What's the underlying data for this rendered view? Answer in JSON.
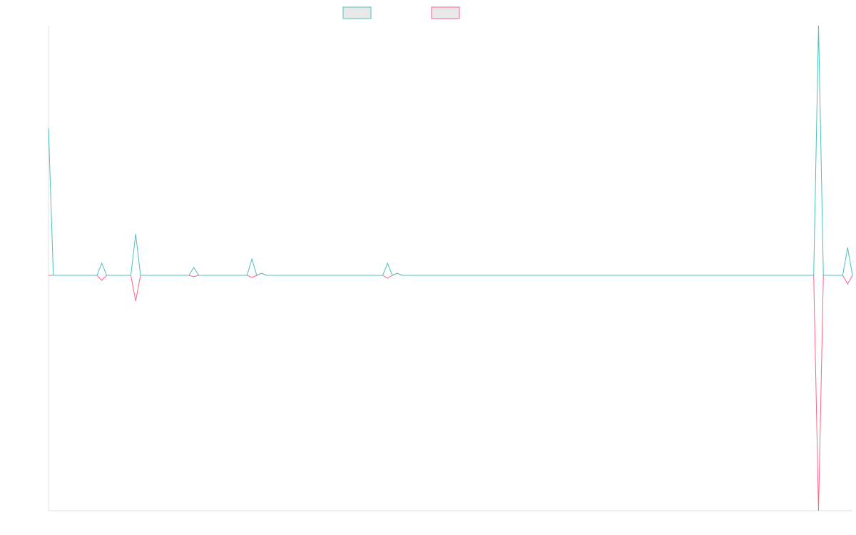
{
  "chart_data": {
    "type": "line",
    "categories": [
      null,
      null,
      null,
      null,
      null,
      null,
      null,
      null,
      null,
      null,
      null,
      null,
      null,
      null,
      null,
      null,
      null,
      null,
      null,
      null,
      null,
      null,
      null,
      null,
      null,
      null,
      null,
      null,
      null,
      null,
      null,
      null,
      null,
      null,
      null,
      null,
      null,
      null,
      null,
      null,
      null,
      null,
      null,
      null,
      null,
      null,
      null,
      null,
      null,
      null,
      null,
      null,
      null,
      null,
      null,
      null,
      null,
      null,
      null,
      null,
      null,
      null,
      null,
      null,
      null,
      null,
      null,
      null,
      null,
      null,
      null,
      null,
      null,
      null,
      null,
      null,
      null,
      null,
      null,
      null,
      null,
      null,
      null,
      null,
      null,
      null,
      null,
      null,
      null,
      null,
      null,
      null,
      null,
      null,
      null,
      null,
      null,
      null,
      null,
      null,
      null,
      null,
      null,
      null,
      null,
      null,
      null,
      null,
      null,
      null,
      null,
      null,
      null,
      null,
      null,
      null,
      null,
      null,
      null,
      null,
      null,
      null,
      null,
      null,
      null,
      null,
      null,
      null,
      null,
      null,
      null,
      null,
      null,
      null,
      null,
      null,
      null,
      null,
      null,
      null,
      null,
      null,
      null,
      null,
      null,
      null,
      null,
      null,
      null,
      null,
      null,
      null,
      null,
      null,
      null,
      null,
      null,
      null,
      null,
      null,
      null,
      null,
      null,
      null,
      null,
      null,
      null
    ],
    "series": [
      {
        "color": "#4bc0c0",
        "values": [
          206,
          0,
          0,
          0,
          0,
          0,
          0,
          0,
          0,
          0,
          0,
          17,
          0,
          0,
          0,
          0,
          0,
          0,
          58,
          0,
          0,
          0,
          0,
          0,
          0,
          0,
          0,
          0,
          0,
          0,
          11,
          0,
          0,
          0,
          0,
          0,
          0,
          0,
          0,
          0,
          0,
          0,
          23,
          0,
          3,
          0,
          0,
          0,
          0,
          0,
          0,
          0,
          0,
          0,
          0,
          0,
          0,
          0,
          0,
          0,
          0,
          0,
          0,
          0,
          0,
          0,
          0,
          0,
          0,
          0,
          17,
          0,
          3,
          0,
          0,
          0,
          0,
          0,
          0,
          0,
          0,
          0,
          0,
          0,
          0,
          0,
          0,
          0,
          0,
          0,
          0,
          0,
          0,
          0,
          0,
          0,
          0,
          0,
          0,
          0,
          0,
          0,
          0,
          0,
          0,
          0,
          0,
          0,
          0,
          0,
          0,
          0,
          0,
          0,
          0,
          0,
          0,
          0,
          0,
          0,
          0,
          0,
          0,
          0,
          0,
          0,
          0,
          0,
          0,
          0,
          0,
          0,
          0,
          0,
          0,
          0,
          0,
          0,
          0,
          0,
          0,
          0,
          0,
          0,
          0,
          0,
          0,
          0,
          0,
          0,
          0,
          0,
          0,
          0,
          0,
          0,
          0,
          0,
          0,
          350,
          0,
          0,
          0,
          0,
          0,
          39,
          0
        ]
      },
      {
        "color": "#ff6384",
        "values": [
          0,
          0,
          0,
          0,
          0,
          0,
          0,
          0,
          0,
          0,
          0,
          -7,
          0,
          0,
          0,
          0,
          0,
          0,
          -36,
          0,
          0,
          0,
          0,
          0,
          0,
          0,
          0,
          0,
          0,
          0,
          -2,
          0,
          0,
          0,
          0,
          0,
          0,
          0,
          0,
          0,
          0,
          0,
          -3,
          0,
          3,
          0,
          0,
          0,
          0,
          0,
          0,
          0,
          0,
          0,
          0,
          0,
          0,
          0,
          0,
          0,
          0,
          0,
          0,
          0,
          0,
          0,
          0,
          0,
          0,
          0,
          -4,
          0,
          3,
          0,
          0,
          0,
          0,
          0,
          0,
          0,
          0,
          0,
          0,
          0,
          0,
          0,
          0,
          0,
          0,
          0,
          0,
          0,
          0,
          0,
          0,
          0,
          0,
          0,
          0,
          0,
          0,
          0,
          0,
          0,
          0,
          0,
          0,
          0,
          0,
          0,
          0,
          0,
          0,
          0,
          0,
          0,
          0,
          0,
          0,
          0,
          0,
          0,
          0,
          0,
          0,
          0,
          0,
          0,
          0,
          0,
          0,
          0,
          0,
          0,
          0,
          0,
          0,
          0,
          0,
          0,
          0,
          0,
          0,
          0,
          0,
          0,
          0,
          0,
          0,
          0,
          0,
          0,
          0,
          0,
          0,
          0,
          0,
          0,
          0,
          -330,
          0,
          0,
          0,
          0,
          0,
          -12,
          0
        ]
      }
    ],
    "ylim": [
      -330,
      350
    ]
  }
}
